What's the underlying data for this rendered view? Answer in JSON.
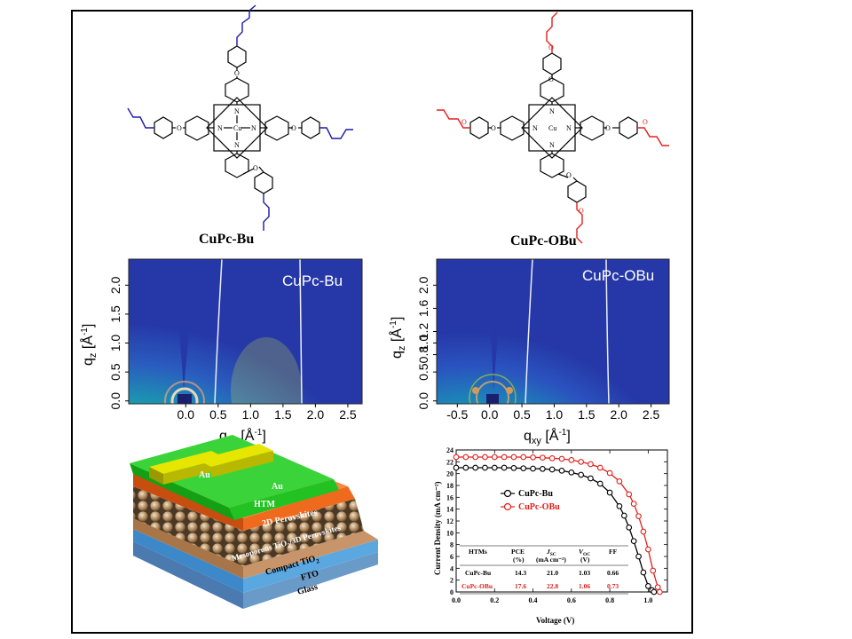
{
  "molecules": [
    {
      "label": "CuPc-Bu",
      "chain_color": "#1a1aa6"
    },
    {
      "label": "CuPc-OBu",
      "chain_color": "#e0201c"
    }
  ],
  "atoms": {
    "metal": "Cu",
    "nitrogen": "N",
    "oxygen": "O"
  },
  "giwaxs": [
    {
      "title": "CuPc-Bu",
      "xlabel": "q",
      "xlabel_sub": "xy",
      "xlabel_unit": " [Å",
      "xlabel_exp": "-1",
      "xlabel_close": "]",
      "ylabel": "q",
      "ylabel_sub": "z",
      "ylabel_unit": " [Å",
      "ylabel_exp": "-1",
      "ylabel_close": "]",
      "xticks": [
        "0.0",
        "0.5",
        "1.0",
        "1.5",
        "2.0",
        "2.5"
      ],
      "yticks": [
        "0.0",
        "0.5",
        "1.0",
        "1.5",
        "2.0"
      ]
    },
    {
      "title": "CuPc-OBu",
      "xlabel": "q",
      "xlabel_sub": "xy",
      "xlabel_unit": " [Å",
      "xlabel_exp": "-1",
      "xlabel_close": "]",
      "ylabel": "q",
      "ylabel_sub": "z",
      "ylabel_unit": " [Å",
      "ylabel_exp": "-1",
      "ylabel_close": "]",
      "xticks": [
        "-0.5",
        "0.0",
        "0.5",
        "1.0",
        "1.5",
        "2.0",
        "2.5"
      ],
      "yticks": [
        "0.0",
        "0.5",
        "0.8",
        "1.0",
        "1.2",
        "1.6",
        "2.0"
      ]
    }
  ],
  "device_layers": {
    "electrode": "Au",
    "htm": "HTM",
    "perov2d": "2D Perovskites",
    "meso": "Mesoporous TiO",
    "meso_sub": "2",
    "meso_tail": "/3D Perovskites",
    "compact": "Compact TiO",
    "compact_sub": "2",
    "fto": "FTO",
    "glass": "Glass",
    "colors": {
      "au": "#e6e600",
      "htm": "#22c222",
      "perov2d": "#f06a1e",
      "fto": "#5ba8e0",
      "glass": "#a8c8e8",
      "compact": "#c8956a"
    }
  },
  "chart_data": {
    "type": "line",
    "title": "",
    "xlabel": "Voltage (V)",
    "ylabel": "Current Density (mA cm⁻²)",
    "xlim": [
      0.0,
      1.1
    ],
    "ylim": [
      0,
      24
    ],
    "xticks": [
      "0.0",
      "0.2",
      "0.4",
      "0.6",
      "0.8",
      "1.0"
    ],
    "yticks": [
      "0",
      "2",
      "4",
      "6",
      "8",
      "10",
      "12",
      "14",
      "16",
      "18",
      "20",
      "22",
      "24"
    ],
    "legend_position": "center-left",
    "series": [
      {
        "name": "CuPc-Bu",
        "color": "#000000",
        "x": [
          0.0,
          0.05,
          0.1,
          0.15,
          0.2,
          0.25,
          0.3,
          0.35,
          0.4,
          0.45,
          0.5,
          0.55,
          0.6,
          0.65,
          0.7,
          0.75,
          0.8,
          0.85,
          0.875,
          0.9,
          0.925,
          0.95,
          0.975,
          1.0,
          1.02,
          1.03
        ],
        "y": [
          21.0,
          21.0,
          21.0,
          21.0,
          21.0,
          21.0,
          20.95,
          20.9,
          20.85,
          20.8,
          20.7,
          20.5,
          20.2,
          19.8,
          19.2,
          18.3,
          16.8,
          14.5,
          12.9,
          10.9,
          8.6,
          6.0,
          3.3,
          1.0,
          0.3,
          0.0
        ]
      },
      {
        "name": "CuPc-OBu",
        "color": "#e0201c",
        "x": [
          0.0,
          0.05,
          0.1,
          0.15,
          0.2,
          0.25,
          0.3,
          0.35,
          0.4,
          0.45,
          0.5,
          0.55,
          0.6,
          0.65,
          0.7,
          0.75,
          0.8,
          0.85,
          0.9,
          0.925,
          0.95,
          0.975,
          1.0,
          1.025,
          1.05,
          1.06
        ],
        "y": [
          22.8,
          22.8,
          22.8,
          22.8,
          22.8,
          22.8,
          22.8,
          22.8,
          22.75,
          22.7,
          22.6,
          22.5,
          22.3,
          22.0,
          21.6,
          21.0,
          20.1,
          18.7,
          16.5,
          14.9,
          12.8,
          10.2,
          7.2,
          3.6,
          0.8,
          0.0
        ]
      }
    ],
    "table": {
      "headers": [
        "HTMs",
        "PCE",
        "J",
        "V",
        "FF"
      ],
      "header_sub": [
        "",
        "(%)",
        "(mA cm⁻²)",
        "(V)",
        ""
      ],
      "header_subscripts": [
        "",
        "",
        "SC",
        "OC",
        ""
      ],
      "rows": [
        {
          "cells": [
            "CuPc-Bu",
            "14.3",
            "21.0",
            "1.03",
            "0.66"
          ],
          "color": "#000000"
        },
        {
          "cells": [
            "CuPc-OBu",
            "17.6",
            "22.8",
            "1.06",
            "0.73"
          ],
          "color": "#e0201c"
        }
      ]
    }
  }
}
